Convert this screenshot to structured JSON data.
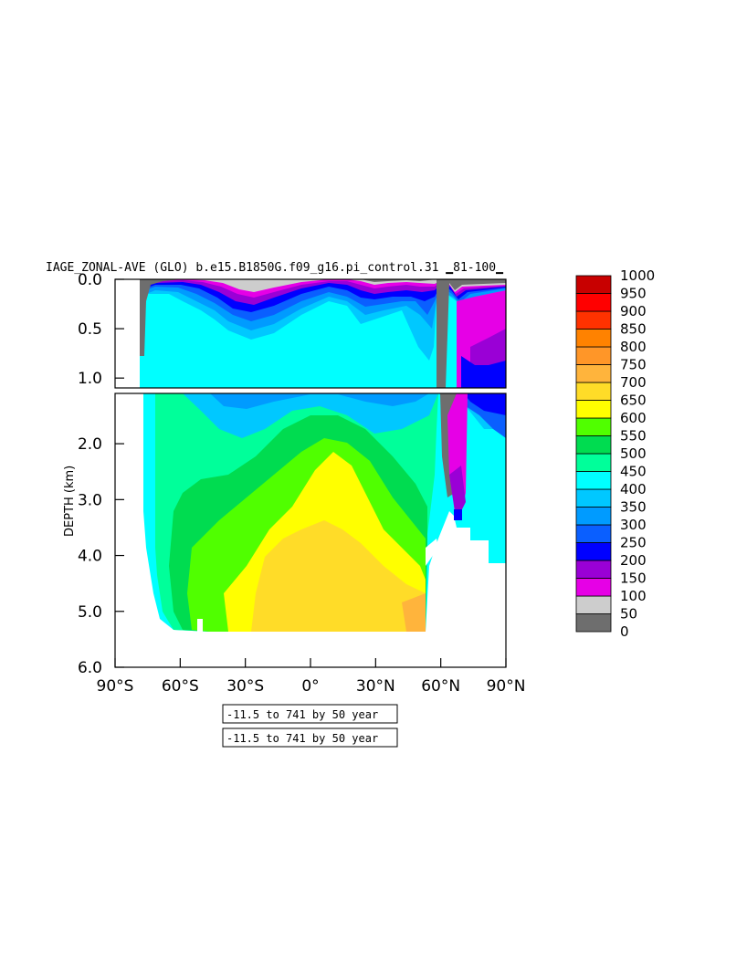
{
  "chart_data": {
    "type": "heatmap",
    "title": "IAGE_ZONAL-AVE (GLO) b.e15.B1850G.f09_g16.pi_control.31 ▁81-100▁",
    "ylabel": "DEPTH (km)",
    "xlabel": "",
    "xlim": [
      -90,
      90
    ],
    "ylim": [
      6.0,
      0.0
    ],
    "x_ticks": [
      "90°S",
      "60°S",
      "30°S",
      "0°",
      "30°N",
      "60°N",
      "90°N"
    ],
    "x_tick_values": [
      -90,
      -60,
      -30,
      0,
      30,
      60,
      90
    ],
    "y_ticks_top": [
      "0.0",
      "0.5",
      "1.0"
    ],
    "y_tick_values_top": [
      0.0,
      0.5,
      1.0
    ],
    "y_ticks_bottom": [
      "2.0",
      "3.0",
      "4.0",
      "5.0",
      "6.0"
    ],
    "y_tick_values_bottom": [
      2.0,
      3.0,
      4.0,
      5.0,
      6.0
    ],
    "panel_break_depth_km": 1.1,
    "colorbar_levels": [
      "0",
      "50",
      "100",
      "150",
      "200",
      "250",
      "300",
      "350",
      "400",
      "450",
      "500",
      "550",
      "600",
      "650",
      "700",
      "750",
      "800",
      "850",
      "900",
      "950",
      "1000"
    ],
    "colorbar_colors": [
      "#6e6e6e",
      "#cdcdcd",
      "#e600e6",
      "#9a00d6",
      "#0000ff",
      "#0a5fff",
      "#009bff",
      "#00c8ff",
      "#00ffff",
      "#00ff9a",
      "#00dc50",
      "#50ff00",
      "#ffff00",
      "#ffdc28",
      "#ffb43c",
      "#ff9628",
      "#ff8200",
      "#ff3200",
      "#ff0000",
      "#c80000"
    ],
    "contour_range_note": "-11.5 to 741 by 50 year",
    "contour_range_note_2": "-11.5 to 741 by 50 year",
    "approx_profile": {
      "latitudes": [
        -78,
        -70,
        -60,
        -50,
        -40,
        -30,
        -20,
        -10,
        0,
        10,
        20,
        30,
        40,
        50,
        55,
        60,
        65,
        70,
        80,
        90
      ],
      "max_depth_km": [
        0.8,
        5.0,
        5.3,
        5.4,
        5.4,
        5.4,
        5.4,
        5.4,
        5.4,
        5.4,
        5.4,
        5.4,
        5.3,
        5.3,
        4.0,
        3.4,
        2.3,
        3.5,
        4.1,
        4.1
      ],
      "deep_age_years": [
        450,
        500,
        550,
        550,
        600,
        650,
        650,
        650,
        650,
        650,
        650,
        650,
        650,
        650,
        550,
        150,
        50,
        200,
        450,
        450
      ]
    }
  }
}
